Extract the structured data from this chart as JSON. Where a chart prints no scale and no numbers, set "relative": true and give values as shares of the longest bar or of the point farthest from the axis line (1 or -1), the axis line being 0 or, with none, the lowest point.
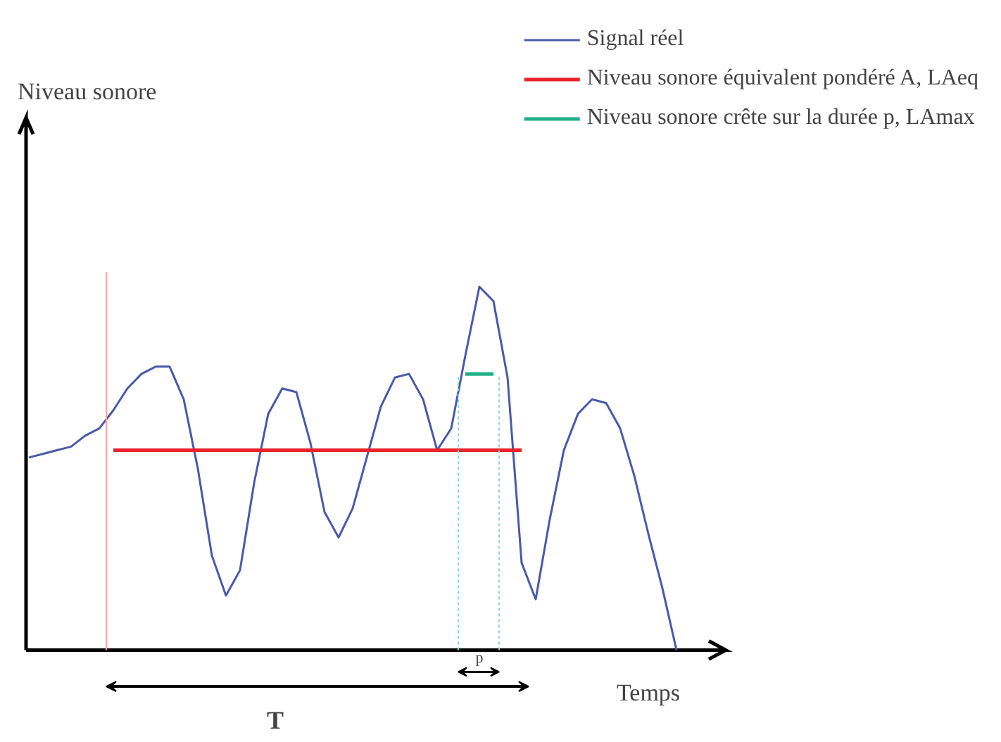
{
  "chart_data": {
    "type": "line",
    "relative": true,
    "xlabel": "Temps",
    "annotations": [
      "Niveau sonore",
      "T",
      "p"
    ],
    "categories": [
      null,
      null,
      null,
      null,
      null,
      null,
      null,
      null,
      null,
      null,
      null,
      null,
      null,
      null,
      null,
      null,
      null,
      null,
      null,
      null,
      null,
      null,
      null,
      null,
      null,
      null,
      null,
      null,
      null,
      null,
      null,
      null,
      null,
      null,
      null,
      null,
      null,
      null,
      null,
      null,
      null,
      null,
      null,
      null,
      null,
      null,
      null
    ],
    "series": [
      {
        "name": "Signal réel",
        "color": "#4a5aa8",
        "values": [
          0.53,
          0.54,
          0.55,
          0.56,
          0.59,
          0.61,
          0.66,
          0.72,
          0.76,
          0.78,
          0.78,
          0.69,
          0.5,
          0.26,
          0.15,
          0.22,
          0.46,
          0.65,
          0.72,
          0.71,
          0.57,
          0.38,
          0.31,
          0.39,
          0.53,
          0.67,
          0.75,
          0.76,
          0.69,
          0.55,
          0.61,
          0.81,
          1.0,
          0.96,
          0.75,
          0.24,
          0.14,
          0.36,
          0.55,
          0.65,
          0.69,
          0.68,
          0.61,
          0.48,
          0.32,
          0.17,
          0
        ]
      },
      {
        "name": "Niveau sonore équivalent pondéré A, LAeq",
        "color": "#e8232b",
        "values": [
          null,
          null,
          null,
          null,
          null,
          null,
          0.55,
          0.55,
          0.55,
          0.55,
          0.55,
          0.55,
          0.55,
          0.55,
          0.55,
          0.55,
          0.55,
          0.55,
          0.55,
          0.55,
          0.55,
          0.55,
          0.55,
          0.55,
          0.55,
          0.55,
          0.55,
          0.55,
          0.55,
          0.55,
          0.55,
          0.55,
          0.55,
          0.55,
          0.55,
          0.55,
          null,
          null,
          null,
          null,
          null,
          null,
          null,
          null,
          null,
          null,
          null
        ]
      },
      {
        "name": "Niveau sonore crête sur la durée p, LAmax",
        "color": "#1fb08a",
        "values": [
          null,
          null,
          null,
          null,
          null,
          null,
          null,
          null,
          null,
          null,
          null,
          null,
          null,
          null,
          null,
          null,
          null,
          null,
          null,
          null,
          null,
          null,
          null,
          null,
          null,
          null,
          null,
          null,
          null,
          null,
          null,
          0.76,
          0.76,
          0.76,
          null,
          null,
          null,
          null,
          null,
          null,
          null,
          null,
          null,
          null,
          null,
          null,
          null
        ]
      }
    ],
    "legend": "top right",
    "tick_labels": false,
    "grid": false
  }
}
